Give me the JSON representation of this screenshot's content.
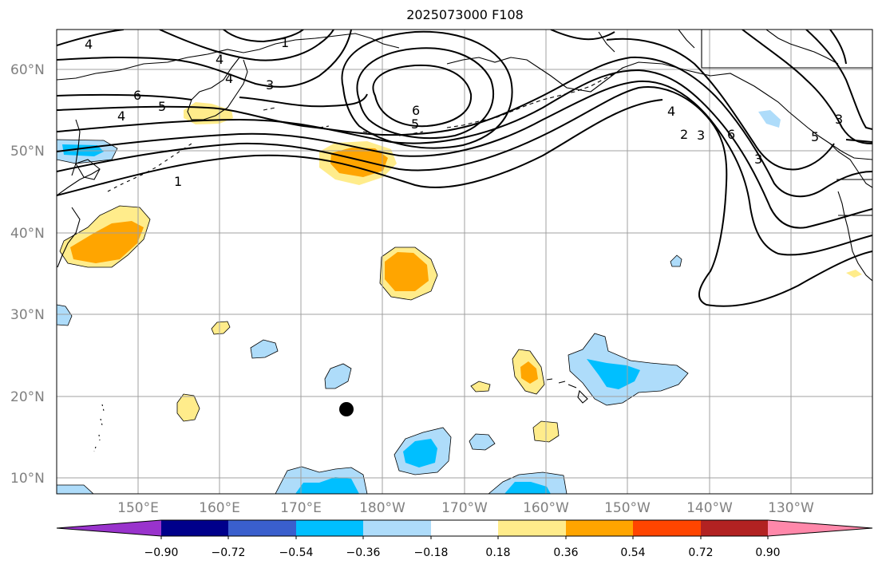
{
  "title": "2025073000 F108",
  "colors": {
    "light_blue": "#aedcfa",
    "blue": "#00bfff",
    "yellow": "#ffec8b",
    "orange": "#ffa500",
    "grid": "#a0a0a0",
    "land_line": "#000000"
  },
  "lat_labels": [
    "10°N",
    "20°N",
    "30°N",
    "40°N",
    "50°N",
    "60°N"
  ],
  "lon_labels": [
    "150°E",
    "160°E",
    "170°E",
    "180°W",
    "170°W",
    "160°W",
    "150°W",
    "140°W",
    "130°W"
  ],
  "colorbar": {
    "colors": [
      "#9933cc",
      "#00008b",
      "#3a5fcd",
      "#00bfff",
      "#aedcfa",
      "#ffffff",
      "#ffec8b",
      "#ffa500",
      "#ff4500",
      "#b22222",
      "#ff88aa"
    ],
    "ticks": [
      "−0.90",
      "−0.72",
      "−0.54",
      "−0.36",
      "−0.18",
      "0.18",
      "0.36",
      "0.54",
      "0.72",
      "0.90"
    ]
  },
  "contour_labels": [
    "4",
    "1",
    "4",
    "3",
    "4",
    "6",
    "5",
    "4",
    "6",
    "5",
    "1",
    "3",
    "4",
    "2",
    "3",
    "6",
    "5",
    "3"
  ],
  "storm_marker": "storm-center"
}
